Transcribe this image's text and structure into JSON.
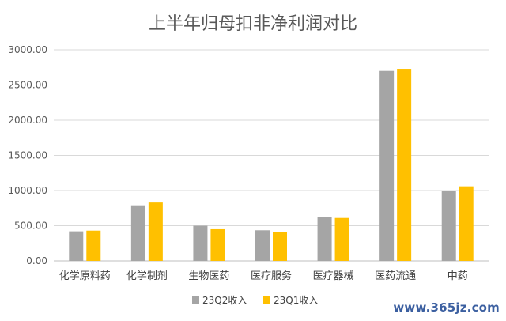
{
  "chart_data": {
    "type": "bar",
    "title": "上半年归母扣非净利润对比",
    "categories": [
      "化学原料药",
      "化学制剂",
      "生物医药",
      "医疗服务",
      "医疗器械",
      "医药流通",
      "中药"
    ],
    "series": [
      {
        "name": "23Q2收入",
        "color": "#a5a5a5",
        "values": [
          420,
          790,
          500,
          435,
          620,
          2700,
          990
        ]
      },
      {
        "name": "23Q1收入",
        "color": "#ffc000",
        "values": [
          430,
          830,
          450,
          405,
          610,
          2730,
          1060
        ]
      }
    ],
    "yticks": [
      "0.00",
      "500.00",
      "1000.00",
      "1500.00",
      "2000.00",
      "2500.00",
      "3000.00"
    ],
    "ylim": [
      0,
      3000
    ],
    "grid": true,
    "legend_position": "bottom"
  },
  "watermark": "www.365jz.com"
}
